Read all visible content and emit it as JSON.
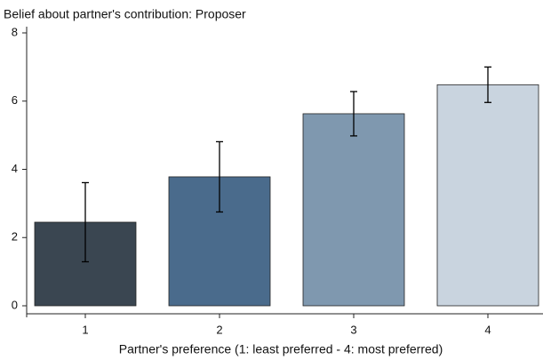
{
  "chart_data": {
    "type": "bar",
    "title": "Belief about partner's contribution: Proposer",
    "x_label": "Partner's preference (1: least preferred - 4: most preferred)",
    "categories": [
      "1",
      "2",
      "3",
      "4"
    ],
    "values": [
      2.45,
      3.78,
      5.63,
      6.48
    ],
    "errors": [
      1.16,
      1.03,
      0.65,
      0.52
    ],
    "colors": [
      "#3a4651",
      "#4a6b8c",
      "#7f98af",
      "#c9d4df"
    ],
    "ylim": [
      0,
      8
    ],
    "yticks": [
      0,
      2,
      4,
      6,
      8
    ],
    "grid": false
  }
}
